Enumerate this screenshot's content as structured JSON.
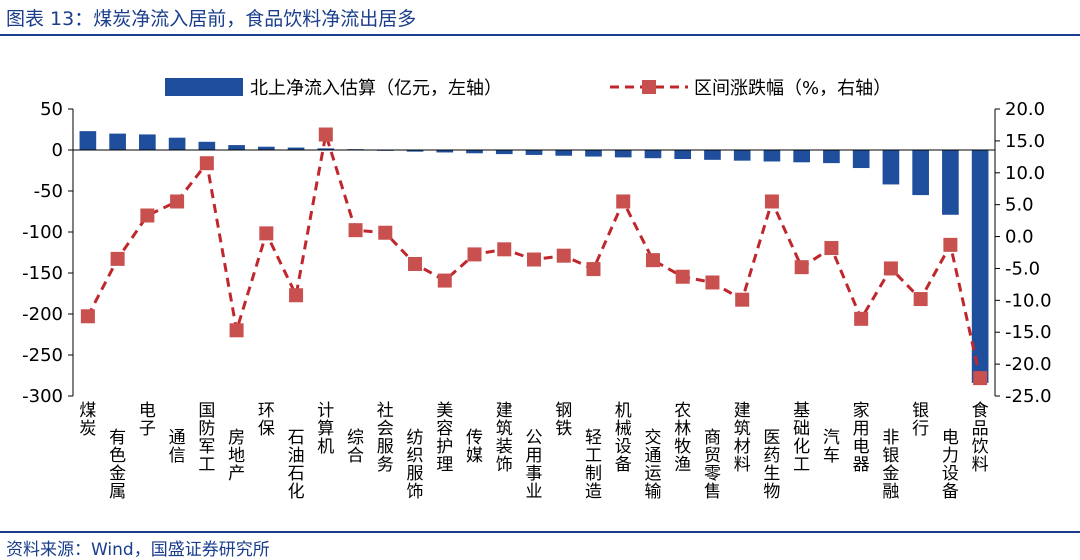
{
  "header": {
    "title": "图表 13：煤炭净流入居前，食品饮料净流出居多"
  },
  "footer": {
    "source": "资料来源：Wind，国盛证券研究所"
  },
  "colors": {
    "bar": "#1f4e9c",
    "line": "#c0272d",
    "marker": "#c8504f",
    "rule": "#1a3e8c"
  },
  "chart_data": {
    "type": "bar",
    "categories": [
      "煤炭",
      "有色金属",
      "电子",
      "通信",
      "国防军工",
      "房地产",
      "环保",
      "石油石化",
      "计算机",
      "综合",
      "社会服务",
      "纺织服饰",
      "美容护理",
      "传媒",
      "建筑装饰",
      "公用事业",
      "钢铁",
      "轻工制造",
      "机械设备",
      "交通运输",
      "农林牧渔",
      "商贸零售",
      "建筑材料",
      "医药生物",
      "基础化工",
      "汽车",
      "家用电器",
      "非银金融",
      "银行",
      "电力设备",
      "食品饮料"
    ],
    "series": [
      {
        "name": "北上净流入估算（亿元，左轴）",
        "type": "bar",
        "axis": "left",
        "values": [
          23,
          20,
          19,
          15,
          10,
          6,
          4,
          3,
          2,
          1,
          -1,
          -2,
          -3,
          -4,
          -5,
          -6,
          -7,
          -8,
          -9,
          -10,
          -11,
          -12,
          -13,
          -14,
          -15,
          -16,
          -22,
          -42,
          -55,
          -79,
          -284
        ]
      },
      {
        "name": "区间涨跌幅（%，右轴）",
        "type": "line",
        "axis": "right",
        "values": [
          -12.5,
          -3.5,
          3.3,
          5.5,
          11.5,
          -14.7,
          0.5,
          -9.2,
          16.0,
          1.0,
          0.6,
          -4.3,
          -6.9,
          -2.8,
          -2.0,
          -3.6,
          -3.0,
          -5.1,
          5.5,
          -3.7,
          -6.3,
          -7.2,
          -9.9,
          5.5,
          -4.8,
          -1.8,
          -12.9,
          -5.0,
          -9.8,
          -1.3,
          -22.2
        ]
      }
    ],
    "y_left": {
      "min": -300,
      "max": 50,
      "ticks": [
        "50",
        "0",
        "-50",
        "-100",
        "-150",
        "-200",
        "-250",
        "-300"
      ]
    },
    "y_right": {
      "min": -25,
      "max": 20,
      "ticks": [
        "20.0",
        "15.0",
        "10.0",
        "5.0",
        "0.0",
        "-5.0",
        "-10.0",
        "-15.0",
        "-20.0",
        "-25.0"
      ]
    },
    "legend": {
      "position": "top",
      "items": [
        "北上净流入估算（亿元，左轴）",
        "区间涨跌幅（%，右轴）"
      ]
    },
    "grid": false
  }
}
